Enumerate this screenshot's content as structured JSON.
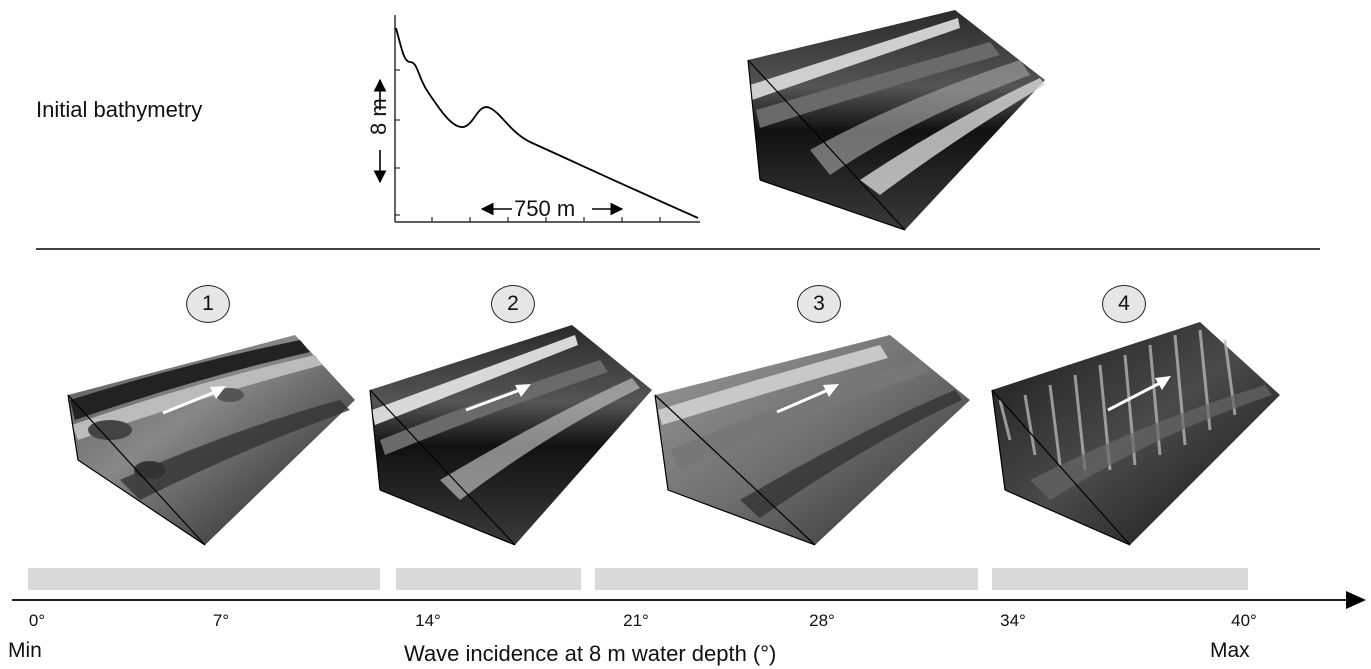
{
  "top": {
    "title": "Initial bathymetry",
    "vertical_scale": "8 m",
    "horizontal_scale": "750 m"
  },
  "panels": [
    {
      "number": "1"
    },
    {
      "number": "2"
    },
    {
      "number": "3"
    },
    {
      "number": "4"
    }
  ],
  "axis": {
    "ticks": [
      "0°",
      "7°",
      "14°",
      "21°",
      "28°",
      "34°",
      "40°"
    ],
    "min_label": "Min",
    "max_label": "Max",
    "title": "Wave incidence at 8 m water depth (°)"
  }
}
